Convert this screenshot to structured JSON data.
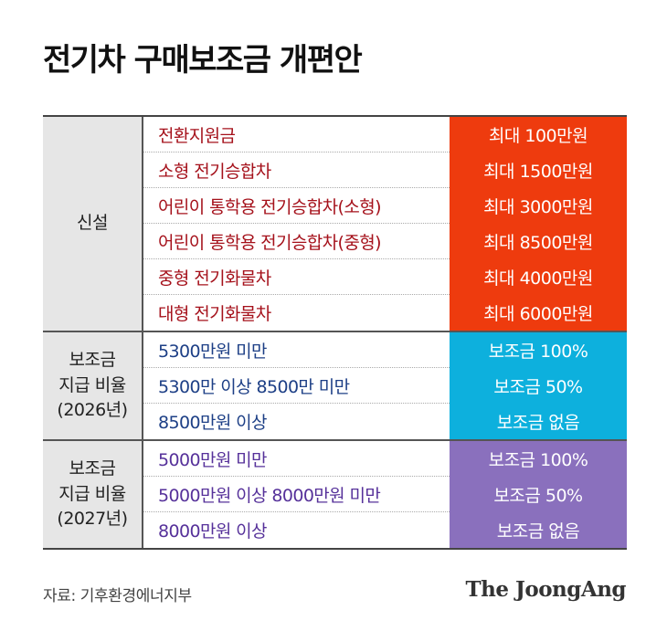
{
  "title": "전기차 구매보조금 개편안",
  "sections": [
    {
      "label": "신설",
      "rows": [
        {
          "item": "전환지원금",
          "value": "최대 100만원"
        },
        {
          "item": "소형 전기승합차",
          "value": "최대 1500만원"
        },
        {
          "item": "어린이 통학용 전기승합차(소형)",
          "value": "최대 3000만원"
        },
        {
          "item": "어린이 통학용 전기승합차(중형)",
          "value": "최대 8500만원"
        },
        {
          "item": "중형 전기화물차",
          "value": "최대 4000만원"
        },
        {
          "item": "대형 전기화물차",
          "value": "최대 6000만원"
        }
      ]
    },
    {
      "label": "보조금\n지급 비율\n(2026년)",
      "rows": [
        {
          "item": "5300만원 미만",
          "value": "보조금 100%"
        },
        {
          "item": "5300만 이상 8500만 미만",
          "value": "보조금 50%"
        },
        {
          "item": "8500만원 이상",
          "value": "보조금 없음"
        }
      ]
    },
    {
      "label": "보조금\n지급 비율\n(2027년)",
      "rows": [
        {
          "item": "5000만원 미만",
          "value": "보조금 100%"
        },
        {
          "item": "5000만원 이상 8000만원 미만",
          "value": "보조금 50%"
        },
        {
          "item": "8000만원 이상",
          "value": "보조금 없음"
        }
      ]
    }
  ],
  "colors": {
    "new_value_bg": "#ee3b0e",
    "rate2026_value_bg": "#0db0dd",
    "rate2027_value_bg": "#8a70bd",
    "new_item_text": "#a5111b",
    "rate2026_item_text": "#1d3f86",
    "rate2027_item_text": "#56319a"
  },
  "footer": {
    "source": "자료: 기후환경에너지부",
    "logo": "The JoongAng"
  }
}
